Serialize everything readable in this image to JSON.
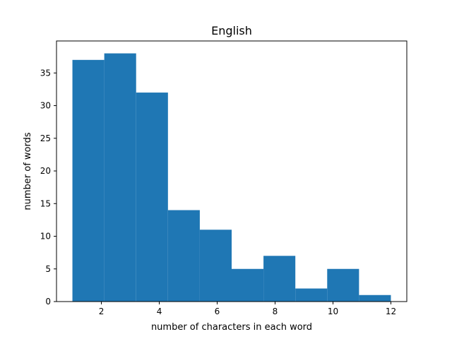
{
  "chart_data": {
    "type": "bar",
    "title": "English",
    "xlabel": "number of characters in each word",
    "ylabel": "number of words",
    "xlim": [
      0.45,
      12.55
    ],
    "ylim": [
      0,
      39.9
    ],
    "bin_edges": [
      1,
      2.1,
      3.2,
      4.3,
      5.4,
      6.5,
      7.6,
      8.7,
      9.8,
      10.9,
      12
    ],
    "values": [
      37,
      38,
      32,
      14,
      11,
      5,
      7,
      2,
      5,
      1
    ],
    "xticks": [
      2,
      4,
      6,
      8,
      10,
      12
    ],
    "yticks": [
      0,
      5,
      10,
      15,
      20,
      25,
      30,
      35
    ],
    "bar_color": "#1f77b4",
    "grid": false,
    "legend": "none"
  }
}
